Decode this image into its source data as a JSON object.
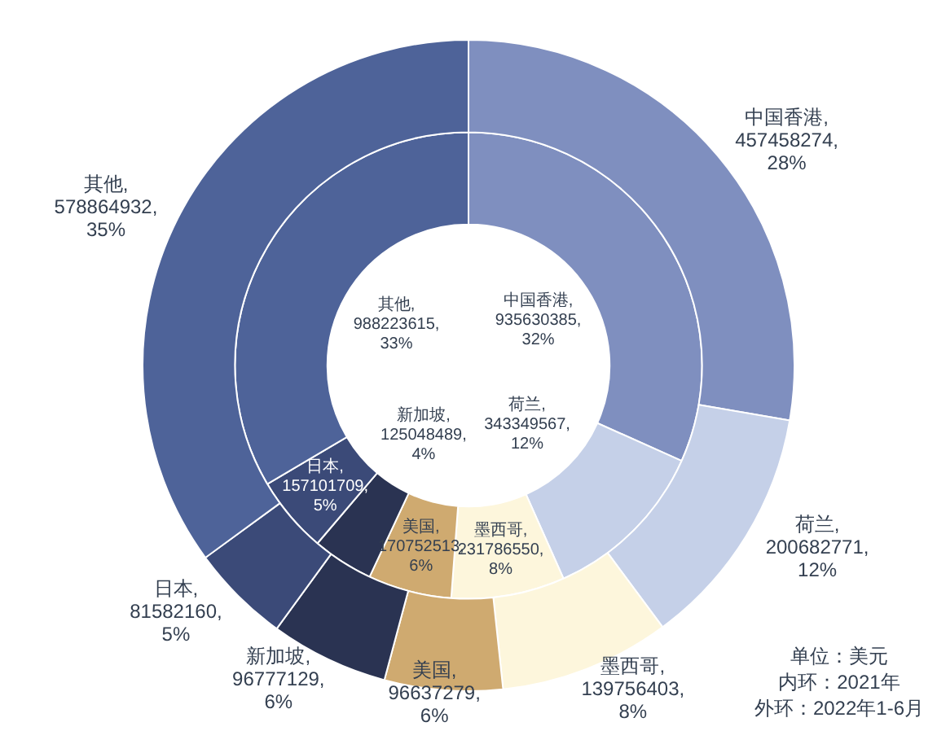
{
  "chart_data": {
    "type": "donut",
    "categories": [
      "中国香港",
      "荷兰",
      "墨西哥",
      "美国",
      "新加坡",
      "日本",
      "其他"
    ],
    "colors": [
      "#7f8fbf",
      "#c5d0e8",
      "#fdf6dc",
      "#cfaa70",
      "#2a3352",
      "#3b4a78",
      "#4e6399"
    ],
    "series": [
      {
        "values": [
          457458274,
          200682771,
          139756403,
          96637279,
          96777129,
          81582160,
          578864932
        ],
        "value_labels": [
          ",\n457458274,\n28%",
          ",\n200682771,\n12%",
          ",\n139756403,\n8%",
          ",\n96637279,\n6%",
          ",\n96777129,\n6%",
          ",\n81582160,\n5%",
          ",\n578864932,\n35%"
        ]
      },
      {
        "values": [
          935630385,
          343349567,
          231786550,
          170752513,
          125048489,
          157101709,
          988223615
        ],
        "value_labels": [
          ",\n935630385,\n32%",
          ",\n343349567,\n12%",
          ",\n231786550,\n8%",
          ",\n170752513,\n6%",
          ",\n125048489,\n4%",
          ",\n157101709,\n5%",
          ",\n988223615,\n33%"
        ]
      }
    ],
    "annotations": [
      "单位：美元",
      "内环：2021年",
      "外环：2022年1-6月"
    ]
  }
}
